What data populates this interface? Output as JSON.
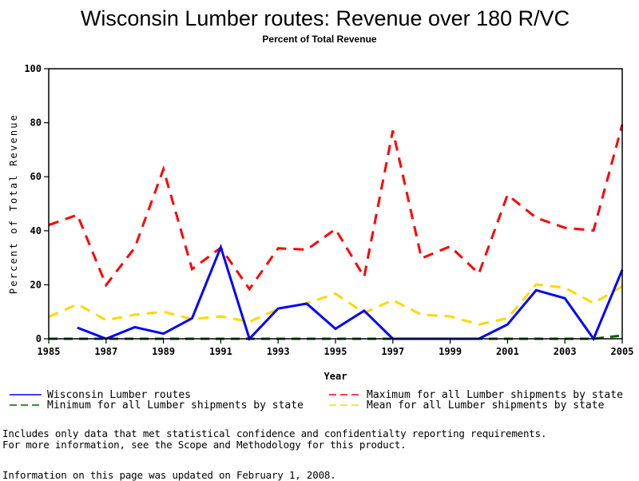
{
  "chart_data": {
    "type": "line",
    "title": "Wisconsin Lumber routes: Revenue over 180 R/VC",
    "subtitle": "Percent of Total Revenue",
    "xlabel": "Year",
    "ylabel": "Percent of Total Revenue",
    "xlim": [
      1985,
      2005
    ],
    "ylim": [
      0,
      100
    ],
    "x_ticks": [
      "1985",
      "1987",
      "1989",
      "1991",
      "1993",
      "1995",
      "1997",
      "1999",
      "2001",
      "2003",
      "2005"
    ],
    "y_ticks": [
      "0",
      "20",
      "40",
      "60",
      "80",
      "100"
    ],
    "x": [
      1985,
      1986,
      1987,
      1988,
      1989,
      1990,
      1991,
      1992,
      1993,
      1994,
      1995,
      1996,
      1997,
      1998,
      1999,
      2000,
      2001,
      2002,
      2003,
      2004,
      2005
    ],
    "series": [
      {
        "name": "Wisconsin Lumber routes",
        "color": "#0000ff",
        "style": "solid",
        "values": [
          null,
          4.1,
          0,
          4.3,
          1.9,
          7.6,
          33.9,
          0,
          11.2,
          13.0,
          3.7,
          10.4,
          0,
          0,
          0,
          0,
          5.3,
          18.0,
          15.0,
          0,
          25.5
        ]
      },
      {
        "name": "Maximum for all Lumber shipments by state",
        "color": "#ff0000",
        "style": "dashed",
        "values": [
          42.1,
          45.9,
          19.9,
          33.7,
          62.8,
          25.8,
          33.7,
          18.4,
          33.5,
          33.0,
          40.6,
          22.9,
          77.1,
          29.8,
          34.2,
          24.1,
          53.3,
          44.8,
          41.1,
          40.1,
          79.3
        ]
      },
      {
        "name": "Minimum for all Lumber shipments by state",
        "color": "#006400",
        "style": "dashed",
        "values": [
          0,
          0,
          0,
          0,
          0,
          0,
          0,
          0,
          0,
          0,
          0,
          0,
          0,
          0,
          0,
          0,
          0,
          0,
          0,
          0,
          1.2
        ]
      },
      {
        "name": "Mean for all Lumber shipments by state",
        "color": "#ffd700",
        "style": "dashed",
        "values": [
          8.1,
          12.8,
          6.9,
          8.9,
          10.0,
          7.3,
          8.3,
          6.3,
          11.0,
          13.2,
          16.7,
          9.6,
          14.3,
          8.9,
          8.3,
          5.3,
          7.6,
          20.1,
          18.9,
          13.2,
          19.4
        ]
      }
    ],
    "legend_order": [
      0,
      1,
      2,
      3
    ],
    "legend": "bottom",
    "grid": false
  },
  "notes": {
    "line1": "Includes only data that met statistical confidence and confidentialty reporting requirements.",
    "line2": "For more information, see the Scope and Methodology for this product.",
    "updated": "Information on this page was updated on February 1, 2008."
  }
}
